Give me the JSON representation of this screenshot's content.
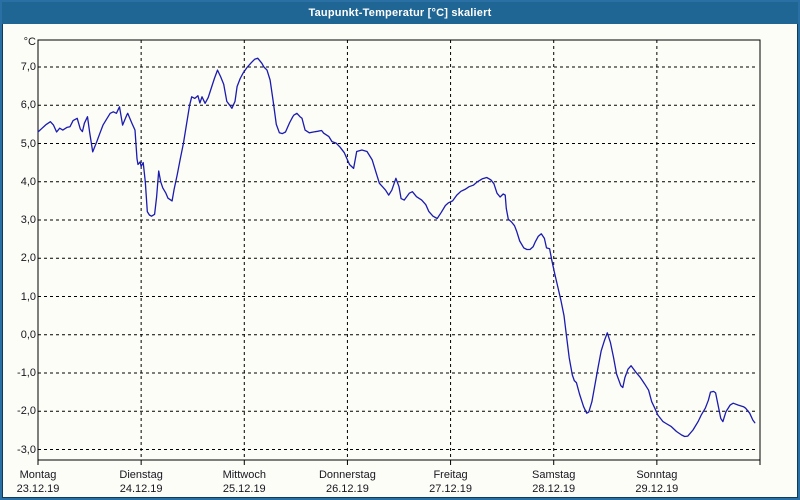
{
  "window": {
    "title": "Taupunkt-Temperatur [°C] skaliert"
  },
  "chart_data": {
    "type": "line",
    "title": "Taupunkt-Temperatur [°C] skaliert",
    "xlabel": "",
    "ylabel": "°C",
    "ylim": [
      -3,
      7
    ],
    "xlim_days": [
      0,
      7
    ],
    "grid": "dashed",
    "legend": "none",
    "y_ticks": [
      {
        "value": 7,
        "label": "7,0"
      },
      {
        "value": 6,
        "label": "6,0"
      },
      {
        "value": 5,
        "label": "5,0"
      },
      {
        "value": 4,
        "label": "4,0"
      },
      {
        "value": 3,
        "label": "3,0"
      },
      {
        "value": 2,
        "label": "2,0"
      },
      {
        "value": 1,
        "label": "1,0"
      },
      {
        "value": 0,
        "label": "0,0"
      },
      {
        "value": -1,
        "label": "-1,0"
      },
      {
        "value": -2,
        "label": "-2,0"
      },
      {
        "value": -3,
        "label": "-3,0"
      }
    ],
    "x_ticks": [
      {
        "day": 0,
        "weekday": "Montag",
        "date": "23.12.19"
      },
      {
        "day": 1,
        "weekday": "Dienstag",
        "date": "24.12.19"
      },
      {
        "day": 2,
        "weekday": "Mittwoch",
        "date": "25.12.19"
      },
      {
        "day": 3,
        "weekday": "Donnerstag",
        "date": "26.12.19"
      },
      {
        "day": 4,
        "weekday": "Freitag",
        "date": "27.12.19"
      },
      {
        "day": 5,
        "weekday": "Samstag",
        "date": "28.12.19"
      },
      {
        "day": 6,
        "weekday": "Sonntag",
        "date": "29.12.19"
      }
    ],
    "series": [
      {
        "name": "Taupunkt-Temperatur",
        "color": "#1b1bb0",
        "points": [
          [
            0.0,
            5.3
          ],
          [
            0.04,
            5.4
          ],
          [
            0.08,
            5.5
          ],
          [
            0.12,
            5.57
          ],
          [
            0.15,
            5.48
          ],
          [
            0.18,
            5.3
          ],
          [
            0.21,
            5.4
          ],
          [
            0.24,
            5.35
          ],
          [
            0.28,
            5.42
          ],
          [
            0.31,
            5.44
          ],
          [
            0.34,
            5.6
          ],
          [
            0.38,
            5.66
          ],
          [
            0.41,
            5.38
          ],
          [
            0.43,
            5.31
          ],
          [
            0.45,
            5.53
          ],
          [
            0.48,
            5.7
          ],
          [
            0.5,
            5.3
          ],
          [
            0.53,
            4.78
          ],
          [
            0.57,
            5.05
          ],
          [
            0.6,
            5.27
          ],
          [
            0.63,
            5.48
          ],
          [
            0.67,
            5.66
          ],
          [
            0.7,
            5.79
          ],
          [
            0.73,
            5.83
          ],
          [
            0.76,
            5.79
          ],
          [
            0.79,
            5.96
          ],
          [
            0.82,
            5.48
          ],
          [
            0.86,
            5.74
          ],
          [
            0.87,
            5.79
          ],
          [
            0.91,
            5.53
          ],
          [
            0.94,
            5.35
          ],
          [
            0.96,
            4.6
          ],
          [
            0.97,
            4.45
          ],
          [
            0.99,
            4.52
          ],
          [
            1.0,
            4.4
          ],
          [
            1.02,
            4.5
          ],
          [
            1.04,
            4.0
          ],
          [
            1.06,
            3.22
          ],
          [
            1.08,
            3.13
          ],
          [
            1.1,
            3.1
          ],
          [
            1.13,
            3.15
          ],
          [
            1.15,
            3.6
          ],
          [
            1.17,
            4.28
          ],
          [
            1.19,
            4.0
          ],
          [
            1.21,
            3.84
          ],
          [
            1.24,
            3.7
          ],
          [
            1.26,
            3.57
          ],
          [
            1.3,
            3.5
          ],
          [
            1.32,
            3.8
          ],
          [
            1.35,
            4.18
          ],
          [
            1.38,
            4.6
          ],
          [
            1.41,
            5.0
          ],
          [
            1.44,
            5.5
          ],
          [
            1.47,
            6.0
          ],
          [
            1.49,
            6.22
          ],
          [
            1.52,
            6.18
          ],
          [
            1.55,
            6.25
          ],
          [
            1.57,
            6.06
          ],
          [
            1.59,
            6.22
          ],
          [
            1.62,
            6.05
          ],
          [
            1.65,
            6.2
          ],
          [
            1.68,
            6.45
          ],
          [
            1.71,
            6.7
          ],
          [
            1.74,
            6.92
          ],
          [
            1.77,
            6.75
          ],
          [
            1.8,
            6.55
          ],
          [
            1.83,
            6.1
          ],
          [
            1.86,
            6.0
          ],
          [
            1.88,
            5.92
          ],
          [
            1.91,
            6.1
          ],
          [
            1.93,
            6.49
          ],
          [
            1.96,
            6.7
          ],
          [
            1.99,
            6.85
          ],
          [
            2.03,
            7.0
          ],
          [
            2.07,
            7.12
          ],
          [
            2.1,
            7.2
          ],
          [
            2.13,
            7.23
          ],
          [
            2.17,
            7.1
          ],
          [
            2.19,
            7.0
          ],
          [
            2.22,
            6.92
          ],
          [
            2.25,
            6.66
          ],
          [
            2.28,
            6.1
          ],
          [
            2.31,
            5.5
          ],
          [
            2.34,
            5.28
          ],
          [
            2.37,
            5.26
          ],
          [
            2.4,
            5.3
          ],
          [
            2.44,
            5.55
          ],
          [
            2.47,
            5.7
          ],
          [
            2.48,
            5.74
          ],
          [
            2.51,
            5.79
          ],
          [
            2.54,
            5.7
          ],
          [
            2.56,
            5.66
          ],
          [
            2.59,
            5.35
          ],
          [
            2.63,
            5.28
          ],
          [
            2.67,
            5.3
          ],
          [
            2.71,
            5.32
          ],
          [
            2.75,
            5.34
          ],
          [
            2.77,
            5.27
          ],
          [
            2.82,
            5.18
          ],
          [
            2.85,
            5.05
          ],
          [
            2.89,
            5.01
          ],
          [
            2.93,
            4.9
          ],
          [
            2.97,
            4.76
          ],
          [
            3.02,
            4.45
          ],
          [
            3.06,
            4.35
          ],
          [
            3.09,
            4.79
          ],
          [
            3.14,
            4.83
          ],
          [
            3.19,
            4.79
          ],
          [
            3.24,
            4.57
          ],
          [
            3.28,
            4.22
          ],
          [
            3.31,
            3.96
          ],
          [
            3.34,
            3.87
          ],
          [
            3.37,
            3.78
          ],
          [
            3.4,
            3.65
          ],
          [
            3.43,
            3.78
          ],
          [
            3.47,
            4.09
          ],
          [
            3.5,
            3.87
          ],
          [
            3.52,
            3.56
          ],
          [
            3.55,
            3.52
          ],
          [
            3.6,
            3.7
          ],
          [
            3.63,
            3.74
          ],
          [
            3.67,
            3.61
          ],
          [
            3.72,
            3.52
          ],
          [
            3.76,
            3.4
          ],
          [
            3.79,
            3.22
          ],
          [
            3.83,
            3.1
          ],
          [
            3.87,
            3.04
          ],
          [
            3.91,
            3.2
          ],
          [
            3.95,
            3.38
          ],
          [
            3.98,
            3.45
          ],
          [
            4.02,
            3.5
          ],
          [
            4.06,
            3.65
          ],
          [
            4.1,
            3.75
          ],
          [
            4.14,
            3.8
          ],
          [
            4.18,
            3.87
          ],
          [
            4.22,
            3.91
          ],
          [
            4.26,
            4.0
          ],
          [
            4.31,
            4.08
          ],
          [
            4.35,
            4.11
          ],
          [
            4.39,
            4.05
          ],
          [
            4.42,
            3.95
          ],
          [
            4.45,
            3.7
          ],
          [
            4.48,
            3.6
          ],
          [
            4.51,
            3.68
          ],
          [
            4.53,
            3.65
          ],
          [
            4.54,
            3.3
          ],
          [
            4.56,
            3.02
          ],
          [
            4.59,
            2.95
          ],
          [
            4.62,
            2.85
          ],
          [
            4.64,
            2.71
          ],
          [
            4.67,
            2.45
          ],
          [
            4.71,
            2.27
          ],
          [
            4.74,
            2.23
          ],
          [
            4.77,
            2.23
          ],
          [
            4.8,
            2.3
          ],
          [
            4.82,
            2.42
          ],
          [
            4.85,
            2.57
          ],
          [
            4.88,
            2.64
          ],
          [
            4.91,
            2.52
          ],
          [
            4.93,
            2.27
          ],
          [
            4.96,
            2.25
          ],
          [
            4.98,
            1.96
          ],
          [
            5.01,
            1.6
          ],
          [
            5.04,
            1.25
          ],
          [
            5.07,
            0.9
          ],
          [
            5.1,
            0.5
          ],
          [
            5.12,
            0.05
          ],
          [
            5.15,
            -0.6
          ],
          [
            5.18,
            -1.05
          ],
          [
            5.2,
            -1.2
          ],
          [
            5.22,
            -1.25
          ],
          [
            5.25,
            -1.55
          ],
          [
            5.29,
            -1.88
          ],
          [
            5.32,
            -2.05
          ],
          [
            5.34,
            -2.02
          ],
          [
            5.37,
            -1.75
          ],
          [
            5.4,
            -1.3
          ],
          [
            5.43,
            -0.85
          ],
          [
            5.46,
            -0.42
          ],
          [
            5.49,
            -0.16
          ],
          [
            5.52,
            0.05
          ],
          [
            5.55,
            -0.2
          ],
          [
            5.58,
            -0.59
          ],
          [
            5.61,
            -1.03
          ],
          [
            5.65,
            -1.33
          ],
          [
            5.67,
            -1.38
          ],
          [
            5.69,
            -1.12
          ],
          [
            5.72,
            -0.9
          ],
          [
            5.75,
            -0.81
          ],
          [
            5.8,
            -0.99
          ],
          [
            5.84,
            -1.12
          ],
          [
            5.88,
            -1.28
          ],
          [
            5.92,
            -1.45
          ],
          [
            5.95,
            -1.75
          ],
          [
            5.98,
            -1.92
          ],
          [
            6.01,
            -2.1
          ],
          [
            6.06,
            -2.27
          ],
          [
            6.09,
            -2.32
          ],
          [
            6.14,
            -2.4
          ],
          [
            6.19,
            -2.53
          ],
          [
            6.24,
            -2.62
          ],
          [
            6.27,
            -2.66
          ],
          [
            6.3,
            -2.65
          ],
          [
            6.35,
            -2.49
          ],
          [
            6.4,
            -2.27
          ],
          [
            6.43,
            -2.1
          ],
          [
            6.47,
            -1.92
          ],
          [
            6.5,
            -1.71
          ],
          [
            6.52,
            -1.5
          ],
          [
            6.55,
            -1.48
          ],
          [
            6.57,
            -1.52
          ],
          [
            6.59,
            -1.79
          ],
          [
            6.62,
            -2.19
          ],
          [
            6.64,
            -2.27
          ],
          [
            6.67,
            -2.01
          ],
          [
            6.71,
            -1.84
          ],
          [
            6.74,
            -1.79
          ],
          [
            6.79,
            -1.84
          ],
          [
            6.84,
            -1.88
          ],
          [
            6.86,
            -1.92
          ],
          [
            6.9,
            -2.05
          ],
          [
            6.93,
            -2.23
          ],
          [
            6.95,
            -2.3
          ]
        ]
      }
    ],
    "colors": {
      "titlebar_bg": "#1f6695",
      "titlebar_text": "#ffffff",
      "window_frame": "#2b70a4",
      "window_outline": "#0d3b5c",
      "plot_bg": "#fdfdf7",
      "grid": "#000000",
      "axis_text": "#16161f",
      "line": "#1b1bb0"
    }
  }
}
